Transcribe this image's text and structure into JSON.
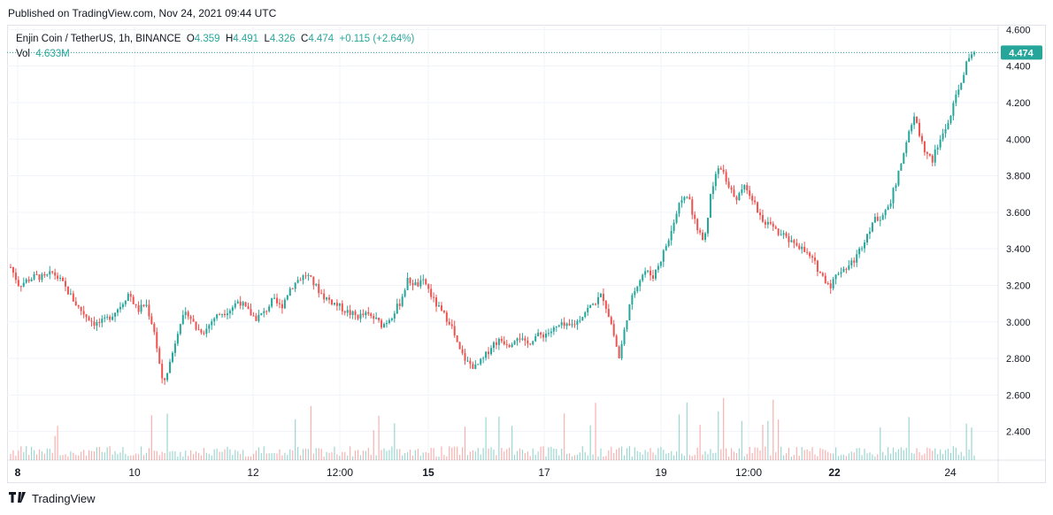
{
  "header": {
    "published": "Published on TradingView.com, Nov 24, 2021 09:44 UTC"
  },
  "legend": {
    "symbol": "Enjin Coin / TetherUS, 1h, BINANCE",
    "o_label": "O",
    "o_value": "4.359",
    "h_label": "H",
    "h_value": "4.491",
    "l_label": "L",
    "l_value": "4.326",
    "c_label": "C",
    "c_value": "4.474",
    "change": "+0.115 (+2.64%)",
    "vol_label": "Vol",
    "vol_value": "4.633M"
  },
  "footer": {
    "brand": "TradingView"
  },
  "colors": {
    "up": "#26a69a",
    "down": "#ef5350",
    "grid": "#f0f3fa",
    "price_line": "#26a69a"
  },
  "chart_data": {
    "type": "candlestick",
    "title": "Enjin Coin / TetherUS, 1h, BINANCE",
    "y_axis": {
      "ylim": [
        2.35,
        4.7
      ],
      "ticks": [
        "4.600",
        "4.400",
        "4.200",
        "4.000",
        "3.800",
        "3.600",
        "3.400",
        "3.200",
        "3.000",
        "2.800",
        "2.600",
        "2.400"
      ]
    },
    "x_axis": {
      "ticks": [
        "8",
        "10",
        "12",
        "12:00",
        "15",
        "17",
        "19",
        "12:00",
        "22",
        "24"
      ],
      "bold_ticks": [
        "8",
        "15",
        "22"
      ]
    },
    "last_price": "4.474",
    "grid": true,
    "price_path": [
      3.3,
      3.2,
      3.23,
      3.25,
      3.24,
      3.27,
      3.22,
      3.15,
      3.08,
      3.03,
      2.99,
      3.0,
      3.04,
      3.09,
      3.16,
      3.06,
      3.1,
      2.95,
      2.65,
      2.8,
      3.0,
      3.05,
      2.96,
      2.95,
      3.02,
      3.05,
      3.07,
      3.12,
      3.06,
      3.02,
      3.05,
      3.12,
      3.08,
      3.18,
      3.23,
      3.26,
      3.2,
      3.14,
      3.11,
      3.08,
      3.05,
      3.03,
      3.04,
      3.02,
      2.98,
      3.03,
      3.1,
      3.23,
      3.2,
      3.22,
      3.12,
      3.05,
      3.0,
      2.85,
      2.78,
      2.75,
      2.8,
      2.88,
      2.9,
      2.88,
      2.93,
      2.87,
      2.92,
      2.93,
      2.95,
      2.98,
      2.97,
      3.0,
      3.06,
      3.1,
      3.15,
      3.0,
      2.8,
      3.05,
      3.2,
      3.28,
      3.25,
      3.35,
      3.48,
      3.63,
      3.7,
      3.55,
      3.42,
      3.75,
      3.85,
      3.72,
      3.68,
      3.75,
      3.65,
      3.55,
      3.52,
      3.48,
      3.45,
      3.43,
      3.38,
      3.33,
      3.25,
      3.2,
      3.28,
      3.3,
      3.35,
      3.45,
      3.55,
      3.58,
      3.65,
      3.8,
      4.0,
      4.12,
      3.95,
      3.88,
      4.0,
      4.1,
      4.25,
      4.4,
      4.474
    ]
  }
}
